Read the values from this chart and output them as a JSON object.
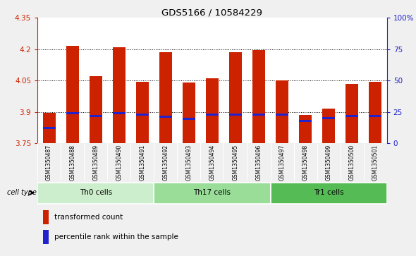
{
  "title": "GDS5166 / 10584229",
  "samples": [
    "GSM1350487",
    "GSM1350488",
    "GSM1350489",
    "GSM1350490",
    "GSM1350491",
    "GSM1350492",
    "GSM1350493",
    "GSM1350494",
    "GSM1350495",
    "GSM1350496",
    "GSM1350497",
    "GSM1350498",
    "GSM1350499",
    "GSM1350500",
    "GSM1350501"
  ],
  "transformed_count": [
    3.895,
    4.215,
    4.07,
    4.21,
    4.045,
    4.185,
    4.04,
    4.06,
    4.185,
    4.197,
    4.05,
    3.885,
    3.915,
    4.035,
    4.045
  ],
  "percentile_rank": [
    3.825,
    3.895,
    3.882,
    3.893,
    3.886,
    3.877,
    3.868,
    3.886,
    3.886,
    3.886,
    3.886,
    3.858,
    3.872,
    3.882,
    3.882
  ],
  "cell_groups": [
    {
      "label": "Th0 cells",
      "start": 0,
      "end": 5,
      "color": "#cceecc"
    },
    {
      "label": "Th17 cells",
      "start": 5,
      "end": 10,
      "color": "#99dd99"
    },
    {
      "label": "Tr1 cells",
      "start": 10,
      "end": 15,
      "color": "#55bb55"
    }
  ],
  "ylim": [
    3.75,
    4.35
  ],
  "yticks_left": [
    3.75,
    3.9,
    4.05,
    4.2,
    4.35
  ],
  "yticks_right_values": [
    0,
    25,
    50,
    75,
    100
  ],
  "bar_color": "#cc2200",
  "marker_color": "#2222cc",
  "bar_width": 0.55,
  "plot_bg_color": "#ffffff",
  "fig_bg_color": "#f0f0f0",
  "grid_color": "#000000",
  "xtick_bg": "#cccccc"
}
